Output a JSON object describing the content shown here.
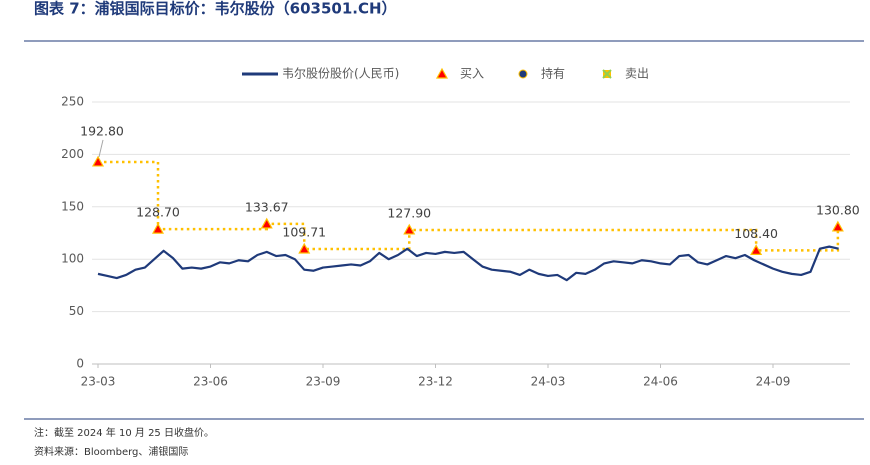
{
  "header": {
    "title": "图表 7：浦银国际目标价：韦尔股份（603501.CH）"
  },
  "footer": {
    "note": "注：截至 2024 年 10 月 25 日收盘价。",
    "source": "资料来源：Bloomberg、浦银国际"
  },
  "chart_data": {
    "type": "line",
    "xlim": [
      0,
      19.8
    ],
    "xticks": [
      {
        "value": 0,
        "label": "23-03"
      },
      {
        "value": 3,
        "label": "23-06"
      },
      {
        "value": 6,
        "label": "23-09"
      },
      {
        "value": 9,
        "label": "23-12"
      },
      {
        "value": 12,
        "label": "24-03"
      },
      {
        "value": 15,
        "label": "24-06"
      },
      {
        "value": 18,
        "label": "24-09"
      }
    ],
    "ylim": [
      0,
      250
    ],
    "yticks": [
      0,
      50,
      100,
      150,
      200,
      250
    ],
    "grid": true,
    "target_line_color": "#ffc000",
    "series": [
      {
        "name": "韦尔股份股价(人民币)",
        "color": "#1f3a7a",
        "marker": "line",
        "x": [
          0,
          0.25,
          0.5,
          0.75,
          1,
          1.25,
          1.5,
          1.75,
          2,
          2.25,
          2.5,
          2.75,
          3,
          3.25,
          3.5,
          3.75,
          4,
          4.25,
          4.5,
          4.75,
          5,
          5.25,
          5.5,
          5.75,
          6,
          6.25,
          6.5,
          6.75,
          7,
          7.25,
          7.5,
          7.75,
          8,
          8.25,
          8.5,
          8.75,
          9,
          9.25,
          9.5,
          9.75,
          10,
          10.25,
          10.5,
          10.75,
          11,
          11.25,
          11.5,
          11.75,
          12,
          12.25,
          12.5,
          12.75,
          13,
          13.25,
          13.5,
          13.75,
          14,
          14.25,
          14.5,
          14.75,
          15,
          15.25,
          15.5,
          15.75,
          16,
          16.25,
          16.5,
          16.75,
          17,
          17.25,
          17.5,
          17.75,
          18,
          18.25,
          18.5,
          18.75,
          19,
          19.25,
          19.5,
          19.75
        ],
        "values": [
          86,
          84,
          82,
          85,
          90,
          92,
          100,
          108,
          101,
          91,
          92,
          91,
          93,
          97,
          96,
          99,
          98,
          104,
          107,
          103,
          104,
          100,
          90,
          89,
          92,
          93,
          94,
          95,
          94,
          98,
          106,
          100,
          104,
          110,
          103,
          106,
          105,
          107,
          106,
          107,
          100,
          93,
          90,
          89,
          88,
          85,
          90,
          86,
          84,
          85,
          80,
          87,
          86,
          90,
          96,
          98,
          97,
          96,
          99,
          98,
          96,
          95,
          103,
          104,
          97,
          95,
          99,
          103,
          101,
          104,
          99,
          95,
          91,
          88,
          86,
          85,
          88,
          110,
          112,
          110
        ]
      },
      {
        "name": "买入",
        "color": "#ff0000",
        "marker": "triangle",
        "x": [
          0,
          1.6,
          4.5,
          5.5,
          8.3,
          17.55,
          19.73
        ],
        "values": [
          192.8,
          128.7,
          133.67,
          109.71,
          127.9,
          108.4,
          130.8
        ],
        "value_labels": [
          "192.80",
          "128.70",
          "133.67",
          "109.71",
          "127.90",
          "108.40",
          "130.80"
        ]
      },
      {
        "name": "持有",
        "color": "#1f3a7a",
        "marker": "circle",
        "x": [],
        "values": []
      },
      {
        "name": "卖出",
        "color": "#92d050",
        "marker": "cross",
        "x": [],
        "values": []
      }
    ]
  }
}
